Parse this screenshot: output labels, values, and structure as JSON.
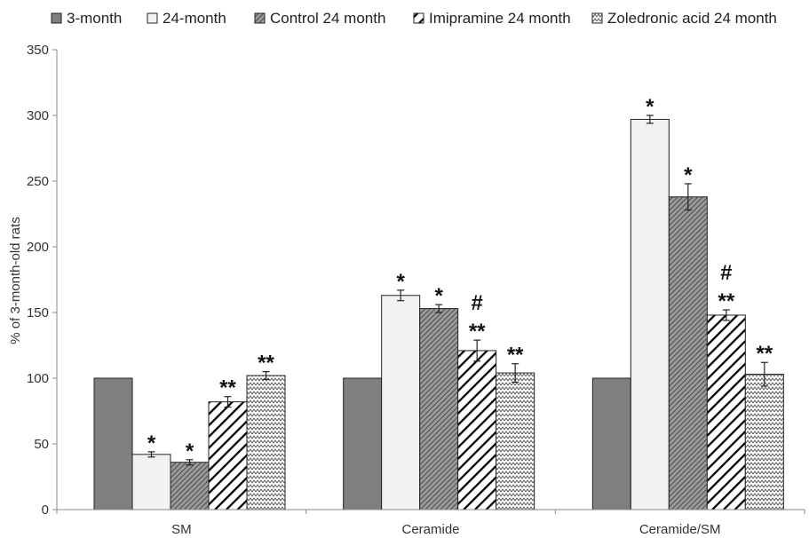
{
  "chart_data": {
    "type": "bar",
    "title": "",
    "xlabel": "",
    "ylabel": "% of 3-month-old rats",
    "ylim": [
      0,
      350
    ],
    "yticks": [
      0,
      50,
      100,
      150,
      200,
      250,
      300,
      350
    ],
    "grid": false,
    "legend_position": "top",
    "categories": [
      "SM",
      "Ceramide",
      "Ceramide/SM"
    ],
    "series": [
      {
        "name": "3-month",
        "fill": "solid",
        "color": "#7f7f7f",
        "values": [
          100,
          100,
          100
        ],
        "errors": [
          0,
          0,
          0
        ],
        "annotations": [
          "",
          "",
          ""
        ]
      },
      {
        "name": "24-month",
        "fill": "light",
        "color": "#f2f2f2",
        "values": [
          42,
          163,
          297
        ],
        "errors": [
          2,
          4,
          3
        ],
        "annotations": [
          "*",
          "*",
          "*"
        ]
      },
      {
        "name": "Control 24 month",
        "fill": "fine-diagonal",
        "color": "#6e6e6e",
        "values": [
          36,
          153,
          238
        ],
        "errors": [
          2,
          3,
          10
        ],
        "annotations": [
          "*",
          "*",
          "*"
        ]
      },
      {
        "name": "Imipramine 24 month",
        "fill": "wide-diagonal",
        "color": "#000000",
        "values": [
          82,
          121,
          148
        ],
        "errors": [
          4,
          8,
          4
        ],
        "annotations": [
          "**",
          "#\n**",
          "#\n**"
        ]
      },
      {
        "name": "Zoledronic acid 24 month",
        "fill": "zigzag",
        "color": "#555555",
        "values": [
          102,
          104,
          103
        ],
        "errors": [
          3,
          7,
          9
        ],
        "annotations": [
          "**",
          "**",
          "**"
        ]
      }
    ]
  }
}
